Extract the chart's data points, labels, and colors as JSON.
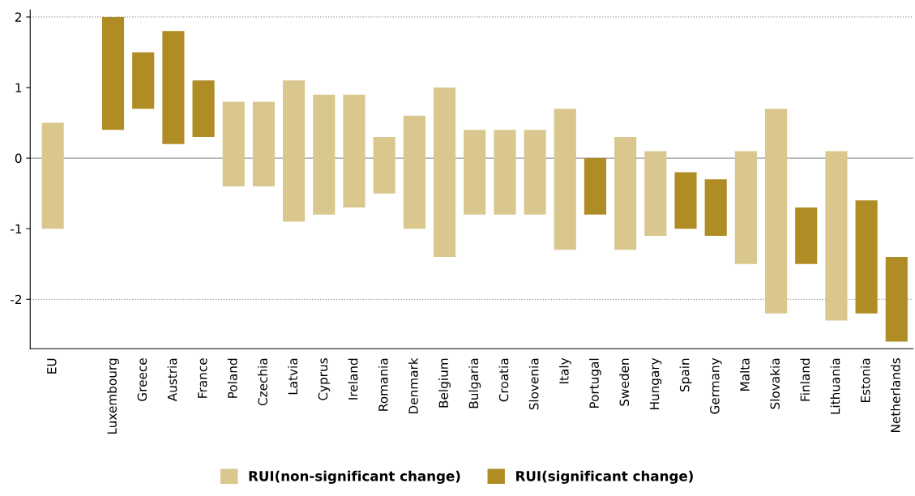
{
  "chart_data": {
    "type": "bar",
    "categories": [
      "EU",
      null,
      "Luxembourg",
      "Greece",
      "Austria",
      "France",
      "Poland",
      "Czechia",
      "Latvia",
      "Cyprus",
      "Ireland",
      "Romania",
      "Denmark",
      "Belgium",
      "Bulgaria",
      "Croatia",
      "Slovenia",
      "Italy",
      "Portugal",
      "Sweden",
      "Hungary",
      "Spain",
      "Germany",
      "Malta",
      "Slovakia",
      "Finland",
      "Lithuania",
      "Estonia",
      "Netherlands"
    ],
    "series": [
      {
        "name": "RUI(non-significant change)",
        "color": "#d9c78e",
        "values": [
          1.5,
          null,
          null,
          null,
          null,
          null,
          1.2,
          1.2,
          2.0,
          1.7,
          1.6,
          0.8,
          1.6,
          2.4,
          1.2,
          1.2,
          1.2,
          2.0,
          null,
          1.6,
          1.2,
          null,
          null,
          1.6,
          2.9,
          null,
          2.4,
          null,
          null
        ],
        "base": [
          -1.0,
          null,
          null,
          null,
          null,
          null,
          -0.4,
          -0.4,
          -0.9,
          -0.8,
          -0.7,
          -0.5,
          -1.0,
          -1.4,
          -0.8,
          -0.8,
          -0.8,
          -1.3,
          null,
          -1.3,
          -1.1,
          null,
          null,
          -1.5,
          -2.2,
          null,
          -2.3,
          null,
          null
        ]
      },
      {
        "name": "RUI(significant change)",
        "color": "#b08d24",
        "values": [
          null,
          null,
          1.6,
          0.8,
          1.6,
          0.8,
          null,
          null,
          null,
          null,
          null,
          null,
          null,
          null,
          null,
          null,
          null,
          null,
          0.8,
          null,
          null,
          0.8,
          0.8,
          null,
          null,
          0.8,
          null,
          1.6,
          1.2
        ],
        "base": [
          null,
          null,
          0.4,
          0.7,
          0.2,
          0.3,
          null,
          null,
          null,
          null,
          null,
          null,
          null,
          null,
          null,
          null,
          null,
          null,
          -0.8,
          null,
          null,
          -1.0,
          -1.1,
          null,
          null,
          -1.5,
          null,
          -2.2,
          -2.6
        ]
      }
    ],
    "ylim": [
      -2.7,
      2.1
    ],
    "yticks": [
      -2,
      -1,
      0,
      1,
      2
    ],
    "ref_lines": [
      {
        "axis": "y",
        "value": 2,
        "color": "#999999",
        "line_style": "dotted"
      },
      {
        "axis": "y",
        "value": 0,
        "color": "#999999",
        "line_style": "solid"
      },
      {
        "axis": "y",
        "value": -2,
        "color": "#999999",
        "line_style": "dotted"
      }
    ],
    "legend": "bottom"
  }
}
